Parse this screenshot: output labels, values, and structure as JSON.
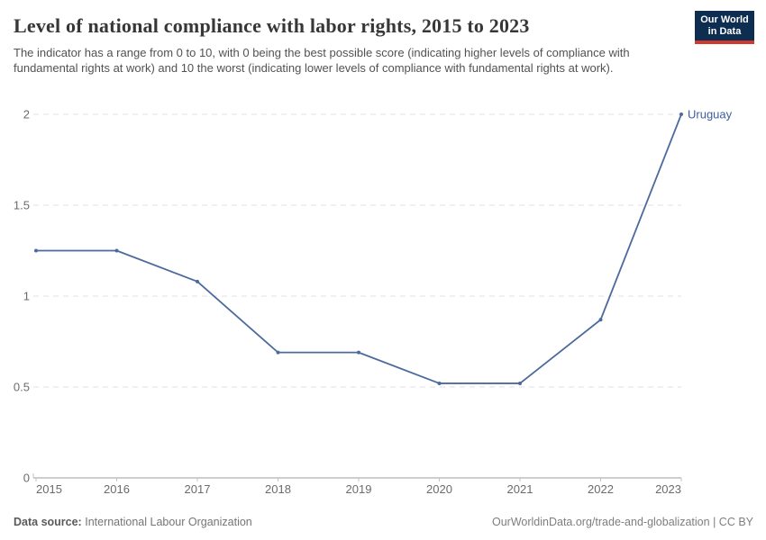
{
  "header": {
    "title": "Level of national compliance with labor rights, 2015 to 2023",
    "subtitle": "The indicator has a range from 0 to 10, with 0 being the best possible score (indicating higher levels of compliance with fundamental rights at work) and 10 the worst (indicating lower levels of compliance with fundamental rights at work).",
    "logo": {
      "line1": "Our World",
      "line2": "in Data",
      "bg": "#0d2d51",
      "accent": "#cf3a2f"
    }
  },
  "chart_data": {
    "type": "line",
    "title": "Level of national compliance with labor rights, 2015 to 2023",
    "x": [
      2015,
      2016,
      2017,
      2018,
      2019,
      2020,
      2021,
      2022,
      2023
    ],
    "series": [
      {
        "name": "Uruguay",
        "values": [
          1.25,
          1.25,
          1.08,
          0.69,
          0.69,
          0.52,
          0.52,
          0.87,
          2
        ],
        "color": "#4C6A9C",
        "label_color": "#3C5FA0"
      }
    ],
    "xlabel": "",
    "ylabel": "",
    "ylim": [
      0,
      2
    ],
    "yticks": [
      0,
      0.5,
      1,
      1.5,
      2
    ],
    "grid": "horizontal-dashed",
    "legend": "end-of-line-label"
  },
  "footer": {
    "source_label": "Data source:",
    "source_value": "International Labour Organization",
    "link": "OurWorldinData.org/trade-and-globalization",
    "divider": "|",
    "license": "CC BY"
  }
}
